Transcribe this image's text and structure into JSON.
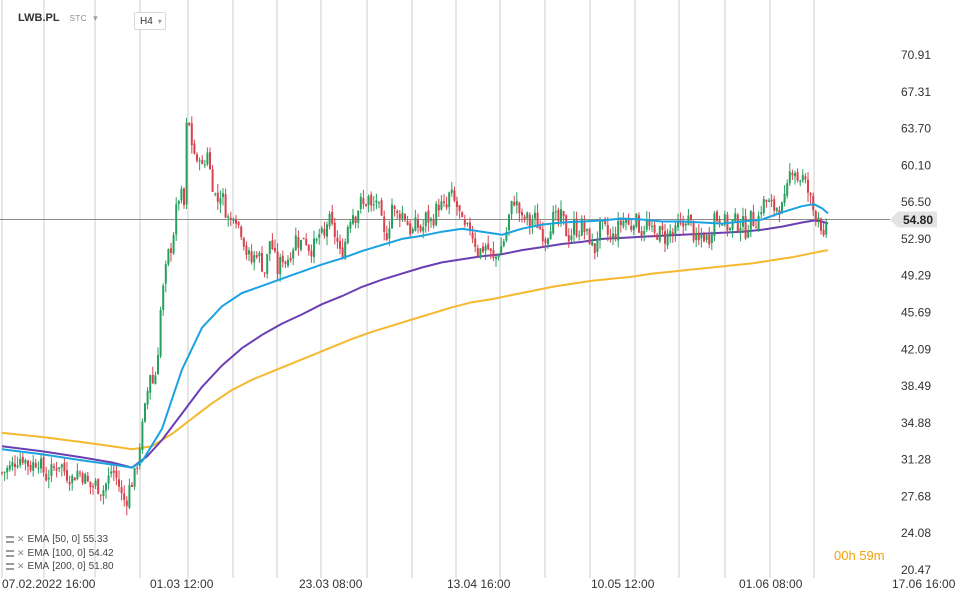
{
  "header": {
    "symbol": "LWB.PL",
    "data_source": "STC",
    "timeframe": "H4"
  },
  "colors": {
    "ema50": "#1aa3e0",
    "ema100": "#6a3fb4",
    "ema200": "#f5b82e",
    "up": "#27a05e",
    "down": "#d8424d",
    "grid": "#d6d6d6",
    "price_line": "#8c8c8c",
    "price_tag": "#e3e3e3",
    "timer": "#f0a30a"
  },
  "ema_legend": [
    {
      "label": "EMA",
      "params": "[50,  0]",
      "value": "55.33"
    },
    {
      "label": "EMA",
      "params": "[100,  0]",
      "value": "54.42"
    },
    {
      "label": "EMA",
      "params": "[200,  0]",
      "value": "51.80"
    }
  ],
  "timer": {
    "hours": "00",
    "h_unit": "h",
    "minutes": "59",
    "m_unit": "m"
  },
  "chart_data": {
    "type": "candlestick",
    "y_axis": {
      "ticks": [
        70.91,
        67.31,
        63.7,
        60.1,
        56.5,
        52.9,
        49.29,
        45.69,
        42.09,
        38.49,
        34.88,
        31.28,
        27.68,
        24.08,
        20.47
      ],
      "range": [
        20.47,
        70.91
      ]
    },
    "current_price": "54.80",
    "x_axis": {
      "ticks": [
        "07.02.2022  16:00",
        "01.03  12:00",
        "23.03  08:00",
        "13.04  16:00",
        "10.05  12:00",
        "01.06  08:00",
        "17.06  16:00"
      ]
    },
    "grid": true,
    "price_path": [
      [
        0,
        30.0
      ],
      [
        8,
        30.5
      ],
      [
        14,
        31.2
      ],
      [
        20,
        31.6
      ],
      [
        28,
        30.6
      ],
      [
        36,
        31.3
      ],
      [
        44,
        29.6
      ],
      [
        52,
        30.4
      ],
      [
        58,
        31.0
      ],
      [
        64,
        29.9
      ],
      [
        70,
        29.4
      ],
      [
        76,
        30.2
      ],
      [
        82,
        29.6
      ],
      [
        88,
        28.6
      ],
      [
        94,
        28.9
      ],
      [
        100,
        28.1
      ],
      [
        106,
        29.3
      ],
      [
        110,
        30.4
      ],
      [
        116,
        29.1
      ],
      [
        120,
        27.6
      ],
      [
        124,
        27.1
      ],
      [
        128,
        28.8
      ],
      [
        132,
        29.4
      ],
      [
        136,
        31.4
      ],
      [
        140,
        34.2
      ],
      [
        144,
        36.8
      ],
      [
        148,
        39.9
      ],
      [
        152,
        38.4
      ],
      [
        156,
        42.1
      ],
      [
        158,
        45.4
      ],
      [
        162,
        48.6
      ],
      [
        166,
        51.3
      ],
      [
        170,
        52.4
      ],
      [
        174,
        55.5
      ],
      [
        178,
        57.6
      ],
      [
        182,
        56.1
      ],
      [
        186,
        67.9
      ],
      [
        188,
        61.2
      ],
      [
        191,
        63.0
      ],
      [
        194,
        59.4
      ],
      [
        198,
        61.5
      ],
      [
        202,
        58.3
      ],
      [
        204,
        63.2
      ],
      [
        207,
        60.1
      ],
      [
        211,
        58.1
      ],
      [
        215,
        56.4
      ],
      [
        219,
        57.6
      ],
      [
        224,
        55.6
      ],
      [
        228,
        54.3
      ],
      [
        232,
        55.9
      ],
      [
        236,
        54.3
      ],
      [
        240,
        53.6
      ],
      [
        244,
        51.7
      ],
      [
        250,
        50.6
      ],
      [
        255,
        51.8
      ],
      [
        259,
        50.6
      ],
      [
        263,
        49.6
      ],
      [
        268,
        52.9
      ],
      [
        272,
        51.4
      ],
      [
        276,
        49.6
      ],
      [
        280,
        51.3
      ],
      [
        284,
        50.6
      ],
      [
        290,
        51.9
      ],
      [
        294,
        53.1
      ],
      [
        298,
        52.3
      ],
      [
        302,
        53.3
      ],
      [
        308,
        51.8
      ],
      [
        314,
        52.4
      ],
      [
        318,
        53.6
      ],
      [
        322,
        52.7
      ],
      [
        326,
        55.1
      ],
      [
        330,
        53.9
      ],
      [
        334,
        53.1
      ],
      [
        338,
        51.4
      ],
      [
        342,
        51.9
      ],
      [
        346,
        54.4
      ],
      [
        350,
        55.6
      ],
      [
        354,
        55.1
      ],
      [
        358,
        56.6
      ],
      [
        362,
        56.0
      ],
      [
        366,
        57.1
      ],
      [
        370,
        55.5
      ],
      [
        374,
        57.0
      ],
      [
        378,
        55.3
      ],
      [
        382,
        53.1
      ],
      [
        386,
        53.6
      ],
      [
        390,
        56.3
      ],
      [
        394,
        55.0
      ],
      [
        398,
        55.5
      ],
      [
        402,
        55.3
      ],
      [
        406,
        54.3
      ],
      [
        410,
        53.4
      ],
      [
        414,
        54.4
      ],
      [
        420,
        53.6
      ],
      [
        424,
        55.1
      ],
      [
        430,
        54.5
      ],
      [
        436,
        56.3
      ],
      [
        440,
        56.1
      ],
      [
        444,
        55.6
      ],
      [
        448,
        57.5
      ],
      [
        452,
        56.5
      ],
      [
        456,
        55.9
      ],
      [
        460,
        54.3
      ],
      [
        464,
        53.6
      ],
      [
        468,
        54.0
      ],
      [
        472,
        52.9
      ],
      [
        476,
        51.6
      ],
      [
        480,
        51.9
      ],
      [
        484,
        52.3
      ],
      [
        488,
        51.6
      ],
      [
        492,
        50.6
      ],
      [
        496,
        51.6
      ],
      [
        500,
        52.3
      ],
      [
        504,
        53.4
      ],
      [
        508,
        55.6
      ],
      [
        512,
        56.8
      ],
      [
        516,
        56.0
      ],
      [
        520,
        54.6
      ],
      [
        524,
        55.1
      ],
      [
        528,
        54.3
      ],
      [
        532,
        55.1
      ],
      [
        536,
        54.3
      ],
      [
        540,
        53.6
      ],
      [
        544,
        52.9
      ],
      [
        548,
        54.3
      ],
      [
        552,
        55.1
      ],
      [
        556,
        54.5
      ],
      [
        560,
        55.2
      ],
      [
        564,
        53.6
      ],
      [
        568,
        53.0
      ],
      [
        572,
        54.3
      ],
      [
        576,
        53.6
      ],
      [
        580,
        54.3
      ],
      [
        584,
        53.3
      ],
      [
        588,
        52.9
      ],
      [
        592,
        51.4
      ],
      [
        596,
        53.6
      ],
      [
        600,
        54.1
      ],
      [
        604,
        53.6
      ],
      [
        608,
        52.9
      ],
      [
        612,
        53.1
      ],
      [
        616,
        54.0
      ],
      [
        620,
        54.6
      ],
      [
        624,
        54.8
      ],
      [
        628,
        53.8
      ],
      [
        632,
        55.0
      ],
      [
        636,
        54.3
      ],
      [
        640,
        53.6
      ],
      [
        644,
        54.6
      ],
      [
        648,
        53.8
      ],
      [
        652,
        53.1
      ],
      [
        656,
        53.6
      ],
      [
        660,
        53.4
      ],
      [
        664,
        52.9
      ],
      [
        668,
        53.6
      ],
      [
        672,
        53.1
      ],
      [
        676,
        54.2
      ],
      [
        680,
        53.8
      ],
      [
        684,
        55.1
      ],
      [
        688,
        54.6
      ],
      [
        692,
        53.2
      ],
      [
        696,
        52.3
      ],
      [
        700,
        53.4
      ],
      [
        704,
        52.9
      ],
      [
        708,
        53.1
      ],
      [
        712,
        55.3
      ],
      [
        716,
        54.8
      ],
      [
        720,
        55.1
      ],
      [
        724,
        54.3
      ],
      [
        728,
        53.8
      ],
      [
        732,
        54.8
      ],
      [
        736,
        54.3
      ],
      [
        740,
        54.6
      ],
      [
        744,
        53.6
      ],
      [
        748,
        55.0
      ],
      [
        752,
        54.6
      ],
      [
        756,
        54.8
      ],
      [
        760,
        56.3
      ],
      [
        764,
        56.6
      ],
      [
        768,
        56.2
      ],
      [
        772,
        55.9
      ],
      [
        776,
        56.1
      ],
      [
        780,
        55.9
      ],
      [
        784,
        56.9
      ],
      [
        788,
        59.4
      ],
      [
        792,
        60.1
      ],
      [
        796,
        58.6
      ],
      [
        800,
        59.1
      ],
      [
        804,
        58.1
      ],
      [
        808,
        56.9
      ],
      [
        812,
        55.4
      ],
      [
        816,
        55.4
      ],
      [
        820,
        53.9
      ],
      [
        822,
        52.3
      ],
      [
        824,
        53.6
      ],
      [
        826,
        54.8
      ]
    ],
    "ema50_path": [
      [
        0,
        32.3
      ],
      [
        40,
        31.8
      ],
      [
        80,
        31.2
      ],
      [
        110,
        30.8
      ],
      [
        130,
        30.5
      ],
      [
        140,
        31.1
      ],
      [
        160,
        34.3
      ],
      [
        180,
        40.1
      ],
      [
        200,
        44.2
      ],
      [
        220,
        46.3
      ],
      [
        240,
        47.6
      ],
      [
        260,
        48.3
      ],
      [
        280,
        49.0
      ],
      [
        300,
        49.7
      ],
      [
        320,
        50.4
      ],
      [
        340,
        51.0
      ],
      [
        360,
        51.7
      ],
      [
        380,
        52.3
      ],
      [
        400,
        52.9
      ],
      [
        420,
        53.2
      ],
      [
        440,
        53.6
      ],
      [
        460,
        53.9
      ],
      [
        480,
        53.6
      ],
      [
        500,
        53.3
      ],
      [
        520,
        53.9
      ],
      [
        540,
        54.3
      ],
      [
        560,
        54.5
      ],
      [
        580,
        54.6
      ],
      [
        600,
        54.7
      ],
      [
        620,
        54.9
      ],
      [
        640,
        54.8
      ],
      [
        660,
        54.6
      ],
      [
        680,
        54.6
      ],
      [
        700,
        54.5
      ],
      [
        720,
        54.4
      ],
      [
        740,
        54.6
      ],
      [
        760,
        54.8
      ],
      [
        780,
        55.5
      ],
      [
        800,
        56.1
      ],
      [
        812,
        56.3
      ],
      [
        820,
        55.9
      ],
      [
        826,
        55.4
      ]
    ],
    "ema100_path": [
      [
        0,
        32.6
      ],
      [
        40,
        32.1
      ],
      [
        80,
        31.5
      ],
      [
        110,
        31.0
      ],
      [
        130,
        30.5
      ],
      [
        145,
        31.6
      ],
      [
        160,
        33.2
      ],
      [
        180,
        35.8
      ],
      [
        200,
        38.4
      ],
      [
        220,
        40.5
      ],
      [
        240,
        42.2
      ],
      [
        260,
        43.5
      ],
      [
        280,
        44.6
      ],
      [
        300,
        45.5
      ],
      [
        320,
        46.5
      ],
      [
        340,
        47.3
      ],
      [
        360,
        48.2
      ],
      [
        380,
        48.9
      ],
      [
        400,
        49.5
      ],
      [
        420,
        50.1
      ],
      [
        440,
        50.6
      ],
      [
        460,
        50.9
      ],
      [
        480,
        51.2
      ],
      [
        500,
        51.4
      ],
      [
        520,
        51.8
      ],
      [
        540,
        52.1
      ],
      [
        560,
        52.4
      ],
      [
        580,
        52.6
      ],
      [
        600,
        52.9
      ],
      [
        620,
        53.0
      ],
      [
        640,
        53.1
      ],
      [
        660,
        53.2
      ],
      [
        680,
        53.3
      ],
      [
        700,
        53.4
      ],
      [
        720,
        53.5
      ],
      [
        740,
        53.6
      ],
      [
        760,
        53.8
      ],
      [
        780,
        54.1
      ],
      [
        800,
        54.5
      ],
      [
        812,
        54.7
      ],
      [
        820,
        54.6
      ],
      [
        826,
        54.4
      ]
    ],
    "ema200_path": [
      [
        0,
        33.9
      ],
      [
        40,
        33.5
      ],
      [
        80,
        33.0
      ],
      [
        110,
        32.6
      ],
      [
        130,
        32.3
      ],
      [
        150,
        32.6
      ],
      [
        170,
        33.8
      ],
      [
        190,
        35.3
      ],
      [
        210,
        36.8
      ],
      [
        230,
        38.1
      ],
      [
        250,
        39.1
      ],
      [
        270,
        39.9
      ],
      [
        290,
        40.7
      ],
      [
        310,
        41.5
      ],
      [
        330,
        42.3
      ],
      [
        350,
        43.1
      ],
      [
        370,
        43.8
      ],
      [
        390,
        44.4
      ],
      [
        410,
        45.0
      ],
      [
        430,
        45.6
      ],
      [
        450,
        46.2
      ],
      [
        470,
        46.7
      ],
      [
        490,
        47.0
      ],
      [
        510,
        47.4
      ],
      [
        530,
        47.8
      ],
      [
        550,
        48.2
      ],
      [
        570,
        48.5
      ],
      [
        590,
        48.8
      ],
      [
        610,
        49.0
      ],
      [
        630,
        49.2
      ],
      [
        650,
        49.5
      ],
      [
        670,
        49.7
      ],
      [
        690,
        49.9
      ],
      [
        710,
        50.1
      ],
      [
        730,
        50.3
      ],
      [
        750,
        50.5
      ],
      [
        770,
        50.8
      ],
      [
        790,
        51.1
      ],
      [
        810,
        51.5
      ],
      [
        826,
        51.8
      ]
    ]
  }
}
